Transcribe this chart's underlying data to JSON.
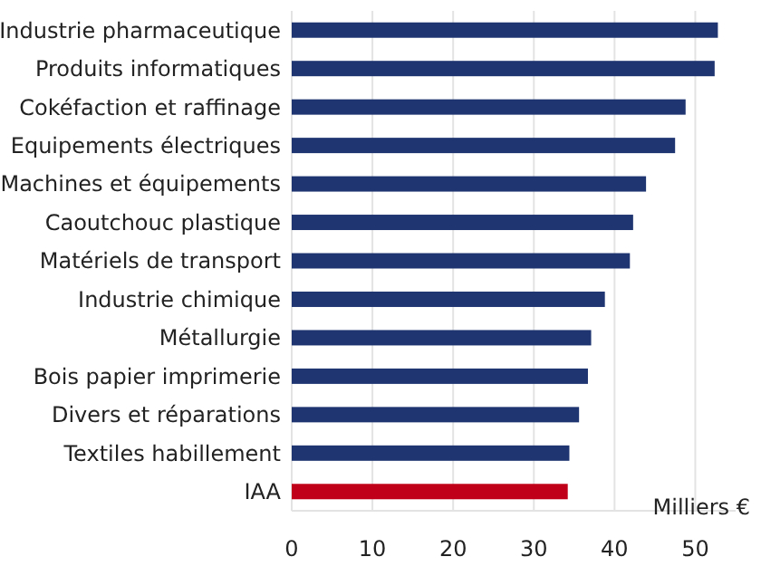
{
  "chart_data": {
    "type": "bar",
    "orientation": "horizontal",
    "xlabel": "Milliers €",
    "categories": [
      "Industrie pharmaceutique",
      "Produits informatiques",
      "Cokéfaction et raffinage",
      "Equipements électriques",
      "Machines et équipements",
      "Caoutchouc plastique",
      "Matériels de transport",
      "Industrie chimique",
      "Métallurgie",
      "Bois papier imprimerie",
      "Divers et réparations",
      "Textiles habillement",
      "IAA"
    ],
    "values": [
      52.8,
      52.4,
      48.8,
      47.5,
      43.9,
      42.3,
      41.9,
      38.8,
      37.1,
      36.7,
      35.6,
      34.4,
      34.2
    ],
    "colors": [
      "#1f3571",
      "#1f3571",
      "#1f3571",
      "#1f3571",
      "#1f3571",
      "#1f3571",
      "#1f3571",
      "#1f3571",
      "#1f3571",
      "#1f3571",
      "#1f3571",
      "#1f3571",
      "#c00018"
    ],
    "xlim": [
      0,
      55
    ],
    "xticks": [
      0,
      10,
      20,
      30,
      40,
      50
    ],
    "grid": "x"
  }
}
